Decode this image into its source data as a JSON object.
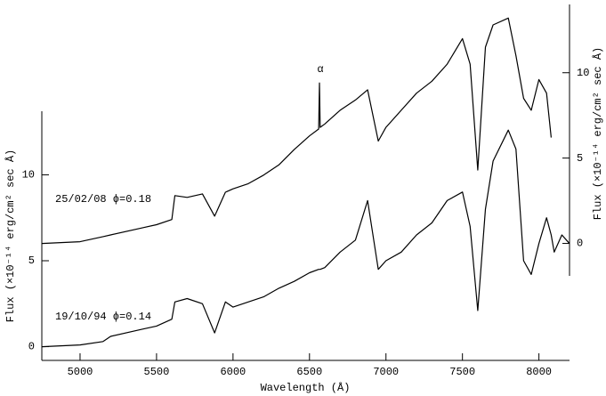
{
  "chart_data": {
    "type": "line",
    "xlabel": "Wavelength (Å)",
    "ylabel": "Flux (×10⁻¹⁴ erg/cm² sec Å)",
    "y2label": "Flux (×10⁻¹⁴ erg/cm² sec Å)",
    "annotations": [
      "α",
      "25/02/08 ϕ=0.18",
      "19/10/94 ϕ=0.14"
    ],
    "x": [
      4750,
      5000,
      5150,
      5200,
      5400,
      5500,
      5600,
      5620,
      5700,
      5800,
      5880,
      5950,
      6000,
      6100,
      6200,
      6300,
      6400,
      6500,
      6560,
      6565,
      6570,
      6600,
      6700,
      6800,
      6880,
      6950,
      7000,
      7100,
      7200,
      7300,
      7400,
      7500,
      7550,
      7600,
      7650,
      7700,
      7800,
      7850,
      7900,
      7950,
      8000,
      8050,
      8080,
      8100,
      8150,
      8200
    ],
    "series": [
      {
        "color": "#000000",
        "values": [
          0,
          0.1,
          0.3,
          0.6,
          1.0,
          1.2,
          1.6,
          2.6,
          2.8,
          2.5,
          0.8,
          2.6,
          2.3,
          2.6,
          2.9,
          3.4,
          3.8,
          4.3,
          4.5,
          4.5,
          4.5,
          4.6,
          5.5,
          6.2,
          8.5,
          4.5,
          5.0,
          5.5,
          6.5,
          7.2,
          8.5,
          9.0,
          7.0,
          2.1,
          8.0,
          10.8,
          12.6,
          11.5,
          5.0,
          4.2,
          6.0,
          7.5,
          6.5,
          5.5,
          6.5,
          6.0
        ]
      },
      {
        "color": "#000000",
        "axis": "y2",
        "values": [
          0,
          0.1,
          0.4,
          0.5,
          0.9,
          1.1,
          1.4,
          2.8,
          2.7,
          2.9,
          1.6,
          3.0,
          3.2,
          3.5,
          4.0,
          4.6,
          5.5,
          6.3,
          6.7,
          9.4,
          6.8,
          7.0,
          7.8,
          8.4,
          9.0,
          6.0,
          6.8,
          7.8,
          8.8,
          9.5,
          10.5,
          12.0,
          10.5,
          4.3,
          11.5,
          12.8,
          13.2,
          11.0,
          8.5,
          7.8,
          9.6,
          8.8,
          6.2,
          null,
          null,
          null
        ]
      }
    ],
    "xlim": [
      4750,
      8200
    ],
    "xticks": [
      5000,
      5500,
      6000,
      6500,
      7000,
      7500,
      8000
    ],
    "ylim": [
      -0.8,
      13.7
    ],
    "yticks": [
      0,
      5,
      10
    ],
    "y2lim": [
      -1.9,
      14.0
    ],
    "y2ticks": [
      0,
      5,
      10
    ]
  }
}
